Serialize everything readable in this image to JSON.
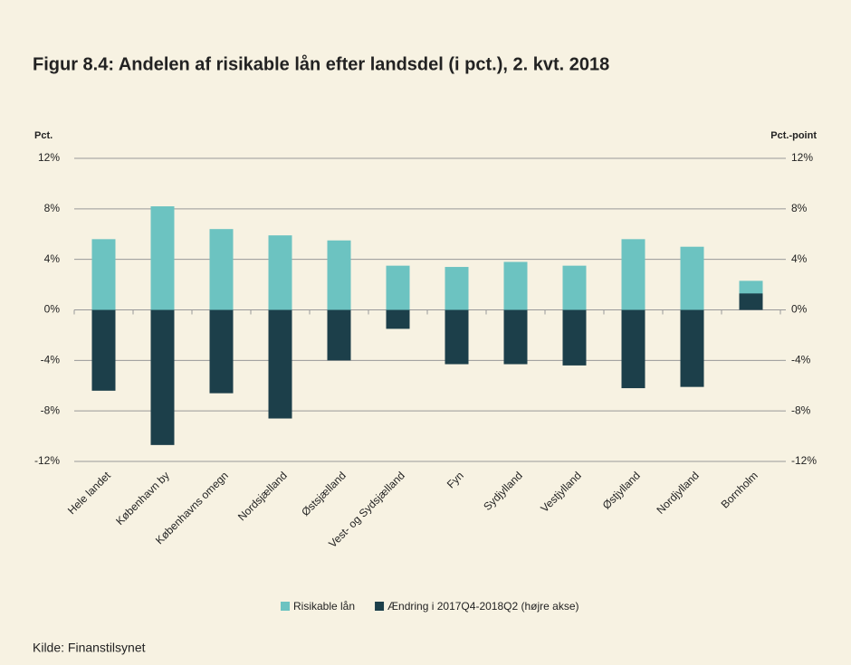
{
  "chart_data": {
    "type": "bar",
    "title": "Figur 8.4: Andelen af risikable lån efter landsdel (i pct.), 2. kvt. 2018",
    "y_label": "Pct.",
    "y2_label": "Pct.-point",
    "source": "Kilde: Finanstilsynet",
    "categories": [
      "Hele landet",
      "København by",
      "Københavns omegn",
      "Nordsjælland",
      "Østsjælland",
      "Vest- og Sydsjælland",
      "Fyn",
      "Sydjylland",
      "Vestjylland",
      "Østjylland",
      "Nordjylland",
      "Bornholm"
    ],
    "series": [
      {
        "name": "Risikable lån",
        "color": "#6cc3c1",
        "values": [
          5.6,
          8.2,
          6.4,
          5.9,
          5.5,
          3.5,
          3.4,
          3.8,
          3.5,
          5.6,
          5.0,
          2.3
        ]
      },
      {
        "name": "Ændring i 2017Q4-2018Q2 (højre akse)",
        "color": "#1c3f4a",
        "axis": "y2",
        "values": [
          -6.4,
          -10.7,
          -6.6,
          -8.6,
          -4.0,
          -1.5,
          -4.3,
          -4.3,
          -4.4,
          -6.2,
          -6.1,
          1.3
        ]
      }
    ],
    "ylim": [
      -12,
      12
    ],
    "yticks": [
      {
        "value": -12,
        "label": "-12%"
      },
      {
        "value": -8,
        "label": "-8%"
      },
      {
        "value": -4,
        "label": "-4%"
      },
      {
        "value": 0,
        "label": "0%"
      },
      {
        "value": 4,
        "label": "4%"
      },
      {
        "value": 8,
        "label": "8%"
      },
      {
        "value": 12,
        "label": "12%"
      }
    ],
    "y2lim": [
      -12,
      12
    ],
    "y2ticks": [
      {
        "value": -12,
        "label": "-12%"
      },
      {
        "value": -8,
        "label": "-8%"
      },
      {
        "value": -4,
        "label": "-4%"
      },
      {
        "value": 0,
        "label": "0%"
      },
      {
        "value": 4,
        "label": "4%"
      },
      {
        "value": 8,
        "label": "8%"
      },
      {
        "value": 12,
        "label": "12%"
      }
    ],
    "grid": true
  }
}
